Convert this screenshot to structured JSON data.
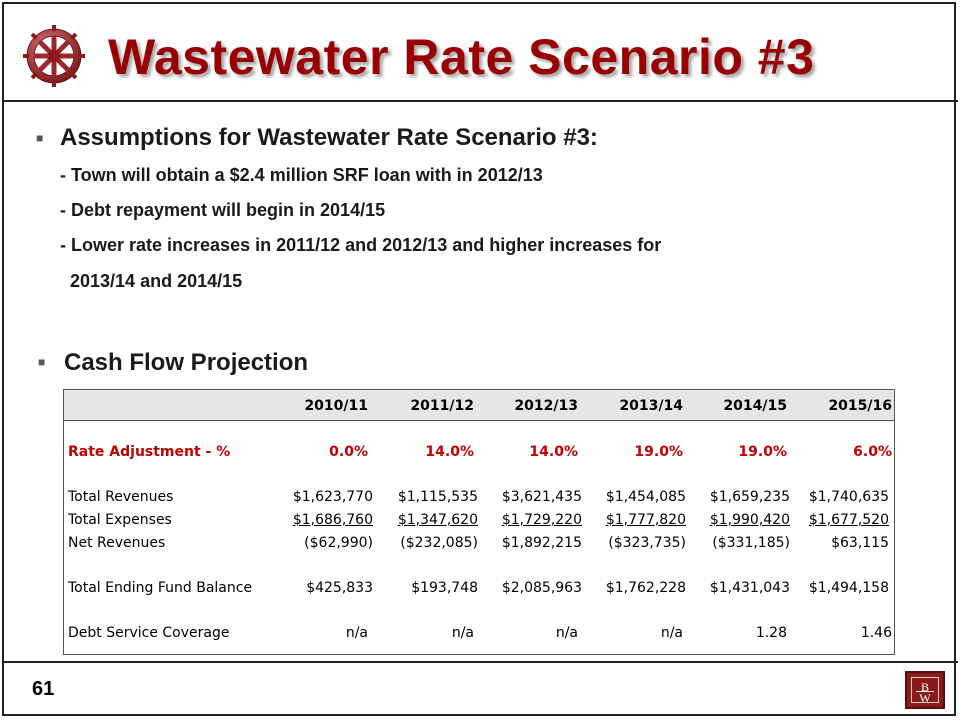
{
  "slide": {
    "title": "Wastewater Rate Scenario #3",
    "page_number": "61"
  },
  "assumptions": {
    "heading": "Assumptions for Wastewater Rate Scenario #3:",
    "lines": [
      "- Town will obtain a $2.4 million SRF loan with in 2012/13",
      "- Debt repayment will begin in 2014/15",
      "- Lower rate increases in 2011/12 and 2012/13 and higher increases for",
      "2013/14 and 2014/15"
    ]
  },
  "cash_flow": {
    "heading": "Cash Flow Projection",
    "columns": [
      "2010/11",
      "2011/12",
      "2012/13",
      "2013/14",
      "2014/15",
      "2015/16"
    ],
    "rows": [
      {
        "label": "Rate Adjustment - %",
        "values": [
          "0.0%",
          "14.0%",
          "14.0%",
          "19.0%",
          "19.0%",
          "6.0%"
        ]
      },
      {
        "label": "Total Revenues",
        "values": [
          "$1,623,770",
          "$1,115,535",
          "$3,621,435",
          "$1,454,085",
          "$1,659,235",
          "$1,740,635"
        ]
      },
      {
        "label": "Total Expenses",
        "values": [
          "$1,686,760",
          "$1,347,620",
          "$1,729,220",
          "$1,777,820",
          "$1,990,420",
          "$1,677,520"
        ]
      },
      {
        "label": "Net Revenues",
        "values": [
          "($62,990)",
          "($232,085)",
          "$1,892,215",
          "($323,735)",
          "($331,185)",
          "$63,115"
        ]
      },
      {
        "label": "Total Ending Fund Balance",
        "values": [
          "$425,833",
          "$193,748",
          "$2,085,963",
          "$1,762,228",
          "$1,431,043",
          "$1,494,158"
        ]
      },
      {
        "label": "Debt Service Coverage",
        "values": [
          "n/a",
          "n/a",
          "n/a",
          "n/a",
          "1.28",
          "1.46"
        ]
      }
    ]
  },
  "logo_letters": {
    "top": "B",
    "bottom": "W"
  },
  "colors": {
    "title": "#990000",
    "rate_row": "#c00000",
    "header_bg": "#e6e6e6",
    "logo_bg": "#8b1a1a"
  },
  "icons": {
    "header_logo": "gear-wheel-icon",
    "bullet": "square-bullet-icon",
    "footer_logo": "bw-logo-icon"
  }
}
